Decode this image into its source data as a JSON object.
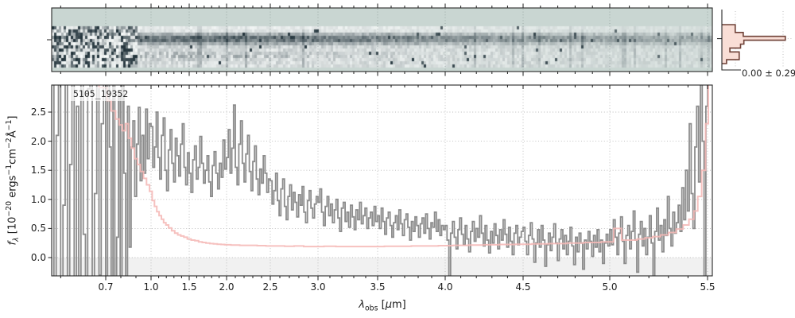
{
  "figure": {
    "id_label": "5105_19352",
    "hist_annotation": "0.00 ± 0.29",
    "xlabel_parts": [
      {
        "k": "i",
        "v": "λ"
      },
      {
        "k": "sub",
        "v": "obs"
      },
      {
        "k": "t",
        "v": " ["
      },
      {
        "k": "i",
        "v": "μ"
      },
      {
        "k": "t",
        "v": "m]"
      }
    ],
    "ylabel_parts": [
      {
        "k": "i",
        "v": "f"
      },
      {
        "k": "subi",
        "v": "λ"
      },
      {
        "k": "t",
        "v": " [10"
      },
      {
        "k": "sup",
        "v": "−20"
      },
      {
        "k": "t",
        "v": " ergs"
      },
      {
        "k": "sup",
        "v": "−1"
      },
      {
        "k": "t",
        "v": "cm"
      },
      {
        "k": "sup",
        "v": "−2"
      },
      {
        "k": "t",
        "v": "Å"
      },
      {
        "k": "sup",
        "v": "−1"
      },
      {
        "k": "t",
        "v": "]"
      }
    ]
  },
  "axes": {
    "x": {
      "tick_values": [
        0.7,
        1.0,
        1.5,
        2.0,
        2.5,
        3.0,
        3.5,
        4.0,
        4.5,
        5.0,
        5.5
      ],
      "tick_labels": [
        "0.7",
        "1.0",
        "1.5",
        "2.0",
        "2.5",
        "3.0",
        "3.5",
        "4.0",
        "4.5",
        "5.0",
        "5.5"
      ],
      "minor_step": 0.1,
      "range": [
        0.58,
        5.53
      ]
    },
    "y": {
      "tick_values": [
        0.0,
        0.5,
        1.0,
        1.5,
        2.0,
        2.5
      ],
      "tick_labels": [
        "0.0",
        "0.5",
        "1.0",
        "1.5",
        "2.0",
        "2.5"
      ],
      "range": [
        -0.31,
        2.96
      ]
    }
  },
  "chart_data": [
    {
      "type": "heatmap",
      "name": "2d-spectrum",
      "description": "2D rectified spectrum cutout: dark horizontal source trace at slit center, secondary noisy band below, heavy salt-and-pepper pixel noise blueward of ~0.9 um, mottle fading into background at red end",
      "x_range_um": [
        0.58,
        5.53
      ],
      "noisy_blue_end_um": 0.9,
      "colors": {
        "background": "#c9d6d2",
        "ink_dark": "#1f3038",
        "ink_light": "#f8fbfa"
      }
    },
    {
      "type": "line",
      "name": "1d-spectrum",
      "title": "5105_19352",
      "xlim": [
        0.58,
        5.53
      ],
      "ylim": [
        -0.31,
        2.96
      ],
      "grid": true,
      "below_zero_band_color": "#f1f1f1",
      "series": [
        {
          "name": "flux",
          "color": "#8c8c8c",
          "style": "steps-mid",
          "segments": [
            {
              "from": 0.58,
              "to": 0.7,
              "values": [
                3.4,
                -0.6,
                2.1,
                3.6,
                -0.5,
                0.9,
                3.2,
                -0.7,
                1.6,
                3.5,
                -0.4,
                2.6,
                -0.6,
                3.3,
                0.4,
                -0.5,
                2.9,
                3.6,
                -0.6,
                1.1,
                3.4,
                -0.3,
                2.3,
                3.5
              ]
            },
            {
              "from": 0.7,
              "to": 0.88,
              "values": [
                -0.6,
                3.2,
                1.9,
                -0.55,
                3.4,
                -0.45,
                0.35,
                2.8,
                -0.5,
                3.3,
                1.45,
                -0.35,
                2.6,
                0.18,
                1.9
              ]
            },
            {
              "from": 0.88,
              "to": 1.0,
              "values": [
                2.35,
                1.05,
                1.95,
                2.58,
                1.32,
                2.1,
                1.45,
                2.55,
                1.7,
                2.3
              ]
            },
            {
              "from": 1.0,
              "to": 1.5,
              "values": [
                2.25,
                1.55,
                1.9,
                2.5,
                1.72,
                1.35,
                2.1,
                2.4,
                1.5,
                1.15,
                1.85,
                2.2,
                1.62,
                1.3,
                2.05,
                1.75,
                1.4,
                1.95,
                2.3,
                1.55,
                1.25,
                1.8
              ]
            },
            {
              "from": 1.5,
              "to": 2.0,
              "values": [
                1.45,
                1.12,
                1.68,
                1.92,
                1.35,
                1.55,
                2.08,
                1.62,
                1.28,
                1.5,
                1.75,
                1.3,
                1.05,
                1.58,
                1.82,
                1.45,
                1.18,
                1.62,
                1.38,
                2.02,
                1.52
              ]
            },
            {
              "from": 2.0,
              "to": 2.5,
              "values": [
                1.72,
                2.2,
                1.45,
                1.88,
                2.62,
                1.55,
                1.25,
                1.95,
                2.35,
                1.62,
                1.3,
                1.78,
                2.1,
                1.48,
                1.15,
                1.65,
                1.92,
                1.35,
                1.08,
                1.52,
                1.28,
                1.75,
                1.45,
                1.12,
                1.35
              ]
            },
            {
              "from": 2.5,
              "to": 3.0,
              "values": [
                1.32,
                0.92,
                1.15,
                1.45,
                0.98,
                0.72,
                1.18,
                1.35,
                0.88,
                0.65,
                1.05,
                1.25,
                0.82,
                1.12,
                0.95,
                0.7,
                1.08,
                0.9,
                1.22,
                0.78,
                0.6,
                0.98,
                1.15,
                0.85,
                0.68,
                0.92,
                1.05
              ]
            },
            {
              "from": 3.0,
              "to": 3.5,
              "values": [
                0.95,
                1.18,
                0.78,
                0.55,
                0.88,
                1.05,
                0.72,
                0.92,
                0.6,
                0.82,
                1.0,
                0.68,
                0.45,
                0.85,
                0.95,
                0.62,
                0.78,
                0.52,
                0.9,
                0.7,
                0.48,
                0.82,
                0.65,
                0.95,
                0.58,
                0.72,
                0.85,
                0.5,
                0.68,
                0.78,
                0.55,
                0.88,
                0.62
              ]
            },
            {
              "from": 3.5,
              "to": 4.0,
              "values": [
                0.72,
                0.5,
                0.85,
                0.62,
                0.4,
                0.68,
                0.78,
                0.55,
                0.35,
                0.6,
                0.72,
                0.48,
                0.82,
                0.58,
                0.38,
                0.65,
                0.75,
                0.52,
                0.3,
                0.62,
                0.45,
                0.7,
                0.55,
                0.35,
                0.58,
                0.68,
                0.42,
                0.75,
                0.5,
                0.32,
                0.6,
                0.52,
                0.78,
                0.45,
                0.65,
                0.38,
                0.55,
                0.48
              ]
            },
            {
              "from": 4.0,
              "to": 4.5,
              "values": [
                0.55,
                0.3,
                -0.38,
                0.42,
                0.62,
                0.35,
                0.15,
                0.48,
                0.68,
                0.4,
                0.22,
                0.55,
                0.32,
                0.1,
                0.45,
                0.62,
                0.28,
                0.5,
                0.35,
                0.72,
                0.42,
                0.2,
                0.55,
                0.3,
                0.08,
                0.45,
                0.25,
                0.58,
                0.38,
                0.15,
                0.48,
                0.3,
                0.65,
                0.4,
                0.18,
                0.52,
                0.28,
                0.05,
                0.42,
                0.55,
                0.22,
                0.35,
                0.45
              ]
            },
            {
              "from": 4.5,
              "to": 5.0,
              "values": [
                0.52,
                0.28,
                0.05,
                0.38,
                0.6,
                0.32,
                -0.08,
                0.25,
                0.48,
                0.18,
                0.55,
                0.3,
                -0.15,
                0.22,
                0.42,
                0.12,
                0.35,
                0.58,
                0.25,
                -0.05,
                0.32,
                0.48,
                0.15,
                0.38,
                0.05,
                0.28,
                0.52,
                0.2,
                -0.12,
                0.35,
                0.1,
                0.42,
                0.25,
                -0.2,
                0.3,
                0.15,
                0.45,
                0.28,
                0.02,
                0.38,
                0.18,
                0.48,
                0.1,
                0.3,
                -0.1,
                0.25,
                0.4,
                0.2
              ]
            },
            {
              "from": 5.0,
              "to": 5.35,
              "values": [
                0.48,
                0.22,
                0.65,
                0.35,
                0.05,
                0.42,
                0.7,
                0.28,
                -0.1,
                0.38,
                0.55,
                0.15,
                0.45,
                0.8,
                0.3,
                -0.25,
                0.4,
                0.62,
                0.2,
                0.5,
                0.05,
                0.35,
                0.72,
                0.25,
                -0.4,
                0.45,
                0.85,
                0.3,
                0.55,
                0.1,
                0.65,
                0.38,
                1.05,
                0.5,
                0.2,
                0.78,
                0.42,
                0.6
              ]
            },
            {
              "from": 5.35,
              "to": 5.52,
              "values": [
                0.9,
                0.45,
                1.2,
                0.65,
                1.5,
                0.8,
                2.3,
                1.1,
                0.5,
                1.9,
                2.6,
                1.3,
                3.4,
                2.0,
                -0.5,
                2.6,
                3.6,
                3.2
              ]
            }
          ]
        },
        {
          "name": "uncertainty",
          "color": "#f5b8b6",
          "style": "steps-mid",
          "points": [
            [
              0.6,
              5.0
            ],
            [
              0.64,
              4.0
            ],
            [
              0.67,
              3.3
            ],
            [
              0.7,
              2.92
            ],
            [
              0.72,
              2.7
            ],
            [
              0.75,
              2.52
            ],
            [
              0.78,
              2.38
            ],
            [
              0.8,
              2.28
            ],
            [
              0.82,
              2.18
            ],
            [
              0.84,
              2.3
            ],
            [
              0.86,
              2.05
            ],
            [
              0.88,
              1.88
            ],
            [
              0.9,
              1.7
            ],
            [
              0.92,
              1.6
            ],
            [
              0.94,
              1.48
            ],
            [
              0.96,
              1.36
            ],
            [
              0.98,
              1.25
            ],
            [
              1.0,
              1.14
            ],
            [
              1.03,
              0.98
            ],
            [
              1.06,
              0.88
            ],
            [
              1.09,
              0.79
            ],
            [
              1.12,
              0.72
            ],
            [
              1.15,
              0.66
            ],
            [
              1.18,
              0.6
            ],
            [
              1.21,
              0.56
            ],
            [
              1.25,
              0.51
            ],
            [
              1.29,
              0.46
            ],
            [
              1.33,
              0.42
            ],
            [
              1.37,
              0.39
            ],
            [
              1.41,
              0.37
            ],
            [
              1.45,
              0.35
            ],
            [
              1.5,
              0.32
            ],
            [
              1.55,
              0.3
            ],
            [
              1.6,
              0.29
            ],
            [
              1.65,
              0.27
            ],
            [
              1.7,
              0.26
            ],
            [
              1.75,
              0.25
            ],
            [
              1.8,
              0.24
            ],
            [
              1.85,
              0.235
            ],
            [
              1.9,
              0.23
            ],
            [
              1.95,
              0.225
            ],
            [
              2.0,
              0.22
            ],
            [
              2.1,
              0.215
            ],
            [
              2.2,
              0.21
            ],
            [
              2.3,
              0.21
            ],
            [
              2.4,
              0.205
            ],
            [
              2.5,
              0.2
            ],
            [
              2.6,
              0.2
            ],
            [
              2.7,
              0.195
            ],
            [
              2.8,
              0.2
            ],
            [
              2.9,
              0.19
            ],
            [
              3.0,
              0.19
            ],
            [
              3.1,
              0.195
            ],
            [
              3.2,
              0.19
            ],
            [
              3.3,
              0.19
            ],
            [
              3.4,
              0.19
            ],
            [
              3.5,
              0.19
            ],
            [
              3.6,
              0.195
            ],
            [
              3.7,
              0.195
            ],
            [
              3.8,
              0.2
            ],
            [
              3.9,
              0.2
            ],
            [
              4.0,
              0.205
            ],
            [
              4.1,
              0.21
            ],
            [
              4.2,
              0.215
            ],
            [
              4.3,
              0.22
            ],
            [
              4.4,
              0.225
            ],
            [
              4.5,
              0.23
            ],
            [
              4.6,
              0.235
            ],
            [
              4.7,
              0.24
            ],
            [
              4.8,
              0.25
            ],
            [
              4.9,
              0.26
            ],
            [
              5.0,
              0.27
            ],
            [
              5.04,
              0.5
            ],
            [
              5.08,
              0.3
            ],
            [
              5.12,
              0.3
            ],
            [
              5.16,
              0.32
            ],
            [
              5.2,
              0.34
            ],
            [
              5.24,
              0.36
            ],
            [
              5.28,
              0.39
            ],
            [
              5.32,
              0.43
            ],
            [
              5.36,
              0.49
            ],
            [
              5.39,
              0.56
            ],
            [
              5.42,
              0.66
            ],
            [
              5.44,
              0.8
            ],
            [
              5.46,
              1.05
            ],
            [
              5.48,
              1.5
            ],
            [
              5.5,
              2.3
            ],
            [
              5.51,
              3.2
            ],
            [
              5.52,
              4.2
            ]
          ]
        }
      ]
    },
    {
      "type": "bar",
      "name": "residual-histogram",
      "orientation": "horizontal",
      "annotation": "0.00 ± 0.29",
      "mean": 0.0,
      "sigma": 0.29,
      "bar_fractions": [
        0.2,
        0.2,
        0.32,
        0.95,
        0.33,
        0.28,
        0.12,
        0.26,
        0.26,
        0.07
      ],
      "fill": "#f9ded6",
      "outline": "#6e4036"
    }
  ]
}
